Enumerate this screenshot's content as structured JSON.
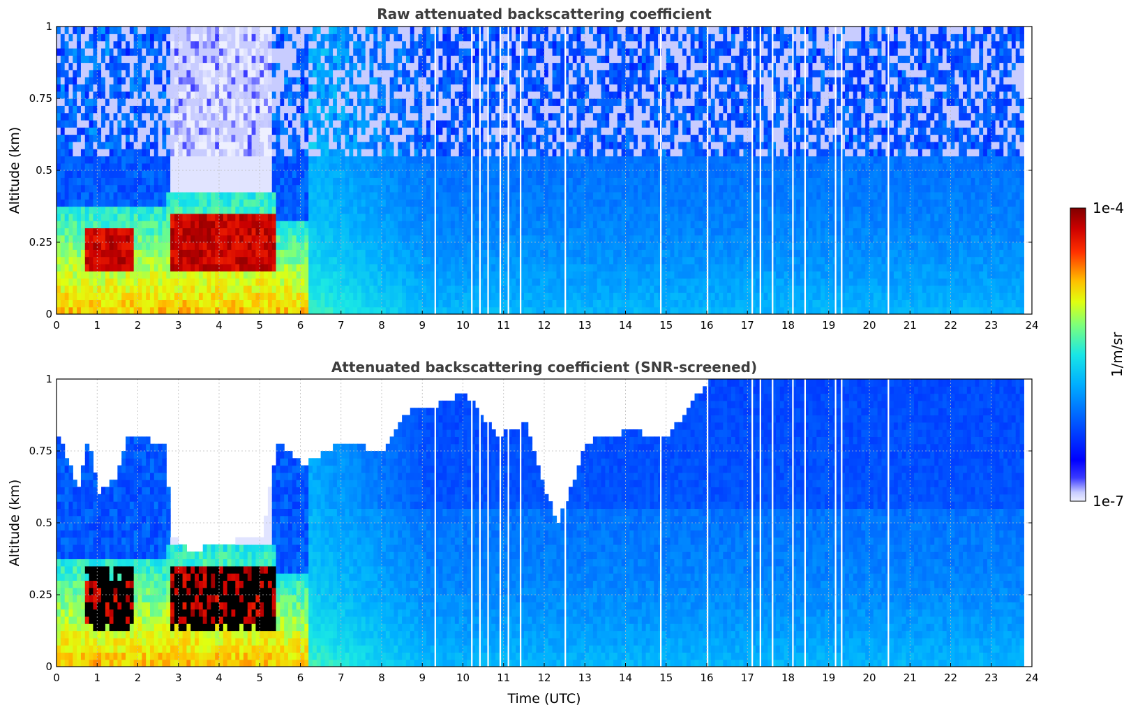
{
  "chart_data": {
    "type": "heatmap",
    "xlabel": "Time (UTC)",
    "x_ticks": [
      "0",
      "1",
      "2",
      "3",
      "4",
      "5",
      "6",
      "7",
      "8",
      "9",
      "10",
      "11",
      "12",
      "13",
      "14",
      "15",
      "16",
      "17",
      "18",
      "19",
      "20",
      "21",
      "22",
      "23",
      "24"
    ],
    "xlim": [
      0,
      24
    ],
    "colorbar": {
      "label": "1/m/sr",
      "max_label": "1e-4",
      "min_label": "1e-7",
      "scale": "log",
      "range": [
        1e-07,
        0.0001
      ],
      "colormap": "jet"
    },
    "panels": [
      {
        "id": "raw",
        "title": "Raw attenuated backscattering coefficient",
        "ylabel": "Altitude (km)",
        "y_ticks": [
          "0",
          "0.25",
          "0.5",
          "0.75",
          "1"
        ],
        "ylim": [
          0,
          1
        ],
        "grid": true,
        "features": {
          "aerosol_layer_top_km": [
            [
              0.6,
              0.38
            ],
            [
              1.5,
              0.36
            ],
            [
              2.7,
              0.4
            ],
            [
              4.0,
              0.42
            ],
            [
              5.4,
              0.4
            ],
            [
              6.0,
              0.3
            ]
          ],
          "dense_layer_km": [
            [
              0.6,
              0.15,
              0.3
            ],
            [
              2.7,
              0.13,
              0.36
            ],
            [
              5.4,
              0.18,
              0.36
            ]
          ],
          "clear_gap_hours": [
            [
              2.7,
              5.3
            ]
          ]
        }
      },
      {
        "id": "screened",
        "title": "Attenuated backscattering coefficient (SNR-screened)",
        "ylabel": "Altitude (km)",
        "y_ticks": [
          "0",
          "0.25",
          "0.5",
          "0.75",
          "1"
        ],
        "ylim": [
          0,
          1
        ],
        "grid": true,
        "signal_top_km": [
          [
            0,
            0.8
          ],
          [
            0.5,
            0.62
          ],
          [
            0.75,
            0.8
          ],
          [
            1.0,
            0.6
          ],
          [
            1.4,
            0.65
          ],
          [
            1.7,
            0.8
          ],
          [
            2.6,
            0.78
          ],
          [
            2.8,
            0.45
          ],
          [
            3.2,
            0.4
          ],
          [
            4.0,
            0.43
          ],
          [
            5.0,
            0.45
          ],
          [
            5.4,
            0.78
          ],
          [
            6.0,
            0.7
          ],
          [
            7.0,
            0.78
          ],
          [
            8.0,
            0.75
          ],
          [
            8.5,
            0.88
          ],
          [
            9.5,
            0.92
          ],
          [
            10.0,
            0.95
          ],
          [
            10.8,
            0.8
          ],
          [
            11.5,
            0.85
          ],
          [
            12.0,
            0.6
          ],
          [
            12.3,
            0.5
          ],
          [
            13.0,
            0.78
          ],
          [
            14.0,
            0.82
          ],
          [
            15.0,
            0.8
          ],
          [
            15.6,
            0.92
          ],
          [
            16.0,
            1.0
          ],
          [
            24.0,
            1.0
          ]
        ]
      }
    ]
  }
}
